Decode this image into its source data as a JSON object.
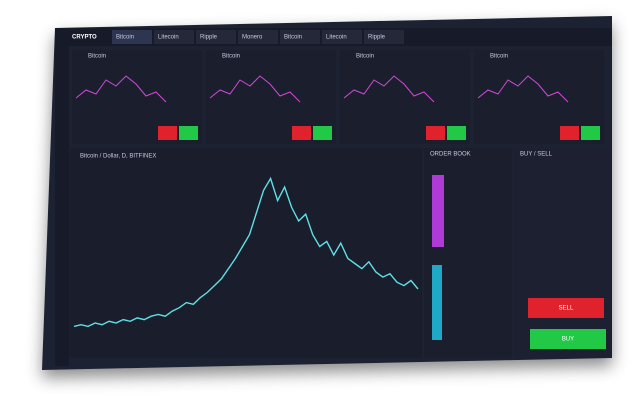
{
  "header": {
    "brand": "CRYPTO",
    "tabs": [
      "Bitcoin",
      "Litecoin",
      "Ripple",
      "Monero",
      "Bitcoin",
      "Litecoin",
      "Ripple"
    ]
  },
  "panels": [
    {
      "name": "Bitcoin"
    },
    {
      "name": "Bitcoin"
    },
    {
      "name": "Bitcoin"
    },
    {
      "name": "Bitcoin"
    }
  ],
  "chart_data": {
    "type": "line",
    "title": "Bitcoin / Dollar, D, BITFINEX",
    "color": "#5ee0e6",
    "values": [
      8,
      9,
      8,
      10,
      9,
      11,
      10,
      12,
      11,
      13,
      12,
      14,
      15,
      14,
      17,
      19,
      22,
      21,
      25,
      28,
      32,
      36,
      42,
      48,
      55,
      62,
      75,
      88,
      95,
      82,
      90,
      78,
      70,
      74,
      62,
      55,
      58,
      50,
      57,
      48,
      45,
      42,
      46,
      40,
      37,
      39,
      34,
      32,
      35,
      30
    ],
    "ylim": [
      0,
      100
    ]
  },
  "order_book": {
    "title": "ORDER BOOK"
  },
  "trade": {
    "title": "BUY / SELL",
    "sell": "SELL",
    "buy": "BUY"
  }
}
